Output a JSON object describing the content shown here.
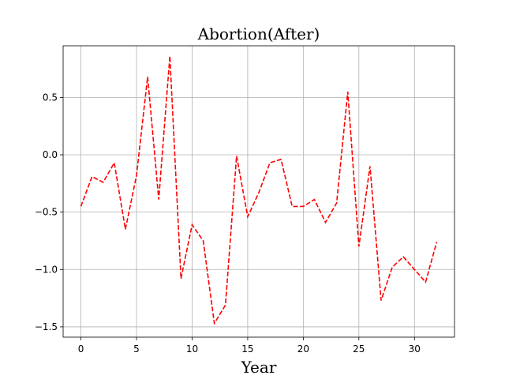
{
  "chart_data": {
    "type": "line",
    "title": "Abortion(After)",
    "xlabel": "Year",
    "ylabel": "",
    "xlim": [
      -1.6,
      33.6
    ],
    "ylim": [
      -1.59,
      0.95
    ],
    "xticks": [
      0,
      5,
      10,
      15,
      20,
      25,
      30
    ],
    "yticks": [
      -1.5,
      -1.0,
      -0.5,
      0.0,
      0.5
    ],
    "ytick_labels": [
      "−1.5",
      "−1.0",
      "−0.5",
      "0.0",
      "0.5"
    ],
    "grid": true,
    "line_style": "dashed",
    "color": "#ff0000",
    "x": [
      0,
      1,
      2,
      3,
      4,
      5,
      6,
      7,
      8,
      9,
      10,
      11,
      12,
      13,
      14,
      15,
      16,
      17,
      18,
      19,
      20,
      21,
      22,
      23,
      24,
      25,
      26,
      27,
      28,
      29,
      30,
      31,
      32
    ],
    "y": [
      -0.45,
      -0.19,
      -0.24,
      -0.07,
      -0.65,
      -0.18,
      0.68,
      -0.39,
      0.86,
      -1.08,
      -0.61,
      -0.75,
      -1.47,
      -1.31,
      -0.01,
      -0.54,
      -0.33,
      -0.07,
      -0.04,
      -0.45,
      -0.45,
      -0.39,
      -0.59,
      -0.42,
      0.55,
      -0.8,
      -0.1,
      -1.27,
      -0.98,
      -0.89,
      -1.0,
      -1.11,
      -0.76
    ]
  }
}
